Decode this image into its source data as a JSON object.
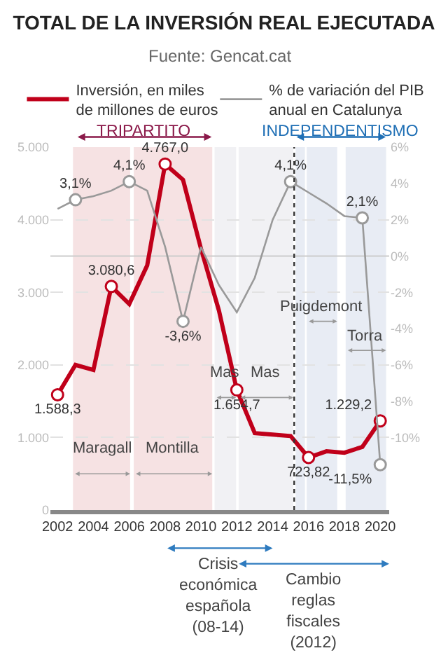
{
  "chart_data": {
    "type": "line",
    "title": "TOTAL DE LA INVERSIÓN REAL EJECUTADA",
    "subtitle": "Fuente: Gencat.cat",
    "x": [
      2002,
      2003,
      2004,
      2005,
      2006,
      2007,
      2008,
      2009,
      2010,
      2011,
      2012,
      2013,
      2014,
      2015,
      2016,
      2017,
      2018,
      2019,
      2020
    ],
    "series": [
      {
        "name": "Inversión, en miles de millones de euros",
        "color": "#c0001a",
        "values": [
          1588.3,
          2000,
          1930,
          3080.6,
          2840,
          3370,
          4767.0,
          4550,
          3600,
          2750,
          1654.7,
          1060,
          1040,
          1020,
          723.82,
          810,
          790,
          870,
          1229.2
        ],
        "value_labels": [
          "1.588,3",
          null,
          null,
          "3.080,6",
          null,
          null,
          "4.767,0",
          null,
          null,
          null,
          "1.654,7",
          null,
          null,
          null,
          "723,82",
          null,
          null,
          null,
          "1.229,2"
        ]
      },
      {
        "name": "% de variación del PIB anual en Catalunya",
        "color": "#999999",
        "axis": "y2",
        "values": [
          2.6,
          3.1,
          3.3,
          3.6,
          4.1,
          3.6,
          0.5,
          -3.6,
          0.5,
          -1.6,
          -3.1,
          -1.2,
          2.0,
          4.1,
          3.5,
          2.9,
          2.2,
          2.1,
          -11.5
        ],
        "value_labels": [
          null,
          "3,1%",
          null,
          null,
          "4,1%",
          null,
          null,
          "-3,6%",
          null,
          null,
          null,
          null,
          null,
          "4,1%",
          null,
          null,
          null,
          "2,1%",
          "-11,5%"
        ]
      }
    ],
    "xlim": [
      2001.6,
      2020.5
    ],
    "xticks": [
      2002,
      2004,
      2006,
      2008,
      2010,
      2012,
      2014,
      2016,
      2018,
      2020
    ],
    "ylim": [
      0,
      5000
    ],
    "yticks": [
      0,
      {
        "value": 1000,
        "label": "1.000"
      },
      {
        "value": 2000,
        "label": "2.000"
      },
      {
        "value": 3000,
        "label": "3.000"
      },
      {
        "value": 4000,
        "label": "4.000"
      },
      {
        "value": 5000,
        "label": "5.000"
      }
    ],
    "y2lim": [
      -14,
      6
    ],
    "y2ticks": [
      {
        "value": -10,
        "label": "-10%"
      },
      {
        "value": -8,
        "label": "-8%"
      },
      {
        "value": -6,
        "label": "-6%"
      },
      {
        "value": -4,
        "label": "-4%"
      },
      {
        "value": -2,
        "label": "-2%"
      },
      {
        "value": 0,
        "label": "0%"
      },
      {
        "value": 2,
        "label": "2%"
      },
      {
        "value": 4,
        "label": "4%"
      },
      {
        "value": 6,
        "label": "6%"
      }
    ],
    "bands": [
      {
        "axis": "x",
        "from": 2002.86,
        "to": 2006.05,
        "label": "Maragall",
        "color": "#f6e2e3"
      },
      {
        "axis": "x",
        "from": 2006.25,
        "to": 2010.63,
        "label": "Montilla",
        "color": "#f6e2e3"
      },
      {
        "axis": "x",
        "from": 2010.76,
        "to": 2011.96,
        "label": "Mas",
        "color": "#f1f1f4"
      },
      {
        "axis": "x",
        "from": 2012.1,
        "to": 2015.15,
        "label": "Mas",
        "color": "#f1f1f4"
      },
      {
        "axis": "x",
        "from": 2015.28,
        "to": 2015.8,
        "color": "#e8ecf4"
      },
      {
        "axis": "x",
        "from": 2015.9,
        "to": 2017.6,
        "label": "Puigdemont",
        "color": "#e8ecf4"
      },
      {
        "axis": "x",
        "from": 2018.07,
        "to": 2020.33,
        "label": "Torra",
        "color": "#e8ecf4"
      }
    ],
    "annotations": [
      "TRIPARTITO",
      "INDEPENDENTISMO",
      "Crisis económica española (08-14)",
      "Cambio reglas fiscales (2012)"
    ],
    "ref_lines": [
      {
        "axis": "x",
        "value": 2015.2,
        "color": "#333333",
        "line_style": "dotted"
      },
      {
        "axis": "y2",
        "value": 0,
        "color": "#cccccc",
        "line_style": "solid"
      }
    ],
    "grid": "y",
    "legend": "top",
    "line_style": "solid"
  }
}
